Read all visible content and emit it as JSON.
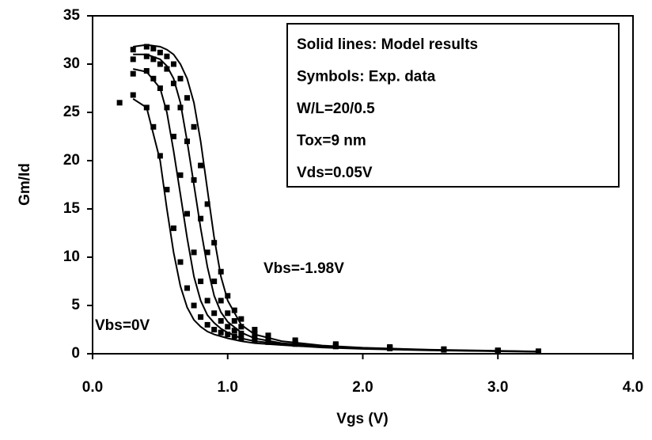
{
  "chart_data": {
    "type": "line",
    "xlabel": "Vgs (V)",
    "ylabel": "Gm/Id",
    "xlim": [
      0,
      4
    ],
    "ylim": [
      0,
      35
    ],
    "xticks": [
      {
        "value": 0,
        "label": "0.0"
      },
      {
        "value": 1,
        "label": "1.0"
      },
      {
        "value": 2,
        "label": "2.0"
      },
      {
        "value": 3,
        "label": "3.0"
      },
      {
        "value": 4,
        "label": "4.0"
      }
    ],
    "yticks": [
      0,
      5,
      10,
      15,
      20,
      25,
      30,
      35
    ],
    "legend_box": [
      "Solid lines: Model results",
      "Symbols: Exp. data",
      "W/L=20/0.5",
      "Tox=9 nm",
      "Vds=0.05V"
    ],
    "annotations": [
      "Vbs=0V",
      "Vbs=-1.98V"
    ],
    "series": [
      {
        "style": "line",
        "color": "#000000",
        "x": [
          0.3,
          0.4,
          0.5,
          0.55,
          0.6,
          0.65,
          0.7,
          0.75,
          0.8,
          0.85,
          0.9,
          0.95,
          1.0,
          1.1,
          1.2,
          1.4,
          1.7,
          2.0,
          2.5,
          3.0,
          3.3
        ],
        "values": [
          26.4,
          25.5,
          20,
          15,
          10.5,
          7,
          4.8,
          3.5,
          2.8,
          2.3,
          2,
          1.8,
          1.6,
          1.3,
          1.1,
          0.9,
          0.65,
          0.5,
          0.35,
          0.25,
          0.2
        ]
      },
      {
        "style": "line",
        "color": "#000000",
        "x": [
          0.3,
          0.4,
          0.5,
          0.55,
          0.6,
          0.65,
          0.7,
          0.75,
          0.8,
          0.85,
          0.9,
          0.95,
          1.0,
          1.1,
          1.2,
          1.4,
          1.7,
          2.0,
          2.5,
          3.0,
          3.3
        ],
        "values": [
          29.5,
          29.2,
          27.5,
          25,
          21,
          16.5,
          12,
          8,
          5.5,
          4,
          3.2,
          2.6,
          2.2,
          1.6,
          1.3,
          1,
          0.7,
          0.55,
          0.38,
          0.27,
          0.22
        ]
      },
      {
        "style": "line",
        "color": "#000000",
        "x": [
          0.3,
          0.4,
          0.5,
          0.55,
          0.6,
          0.65,
          0.7,
          0.75,
          0.8,
          0.85,
          0.9,
          0.95,
          1.0,
          1.1,
          1.2,
          1.4,
          1.7,
          2.0,
          2.5,
          3.0,
          3.3
        ],
        "values": [
          31,
          31,
          30.5,
          29.8,
          28.5,
          26,
          22,
          17.5,
          13,
          9,
          6,
          4.3,
          3.3,
          2.2,
          1.6,
          1.1,
          0.75,
          0.58,
          0.4,
          0.28,
          0.23
        ]
      },
      {
        "style": "line",
        "color": "#000000",
        "x": [
          0.3,
          0.4,
          0.5,
          0.55,
          0.6,
          0.65,
          0.7,
          0.75,
          0.8,
          0.85,
          0.9,
          0.95,
          1.0,
          1.1,
          1.2,
          1.4,
          1.7,
          2.0,
          2.5,
          3.0,
          3.3
        ],
        "values": [
          31.8,
          32,
          31.8,
          31.5,
          31,
          30,
          28.5,
          26,
          22,
          17,
          12,
          8,
          5.5,
          3,
          2,
          1.3,
          0.85,
          0.62,
          0.42,
          0.3,
          0.24
        ]
      },
      {
        "style": "marker",
        "color": "#000000",
        "x": [
          0.2,
          0.3,
          0.4,
          0.45,
          0.5,
          0.55,
          0.6,
          0.65,
          0.7,
          0.75,
          0.8,
          0.85,
          0.9,
          0.95,
          1.0,
          1.05,
          1.1,
          1.2,
          1.3,
          1.5,
          1.8,
          2.2,
          2.6,
          3.0,
          3.3
        ],
        "values": [
          26,
          26.8,
          25.5,
          23.5,
          20.5,
          17,
          13,
          9.5,
          6.8,
          5,
          3.8,
          3,
          2.5,
          2.2,
          2,
          1.8,
          1.6,
          1.4,
          1.2,
          1,
          0.75,
          0.55,
          0.4,
          0.3,
          0.22
        ]
      },
      {
        "style": "marker",
        "color": "#000000",
        "x": [
          0.2,
          0.3,
          0.4,
          0.45,
          0.5,
          0.55,
          0.6,
          0.65,
          0.7,
          0.75,
          0.8,
          0.85,
          0.9,
          0.95,
          1.0,
          1.05,
          1.1,
          1.2,
          1.3,
          1.5,
          1.8,
          2.2,
          2.6,
          3.0,
          3.3
        ],
        "values": [
          null,
          29,
          29.3,
          28.5,
          27.5,
          25.5,
          22.5,
          18.5,
          14.5,
          10.5,
          7.5,
          5.5,
          4.2,
          3.4,
          2.8,
          2.4,
          2.1,
          1.7,
          1.4,
          1.1,
          0.8,
          0.6,
          0.42,
          0.32,
          0.24
        ]
      },
      {
        "style": "marker",
        "color": "#000000",
        "x": [
          0.2,
          0.3,
          0.4,
          0.45,
          0.5,
          0.55,
          0.6,
          0.65,
          0.7,
          0.75,
          0.8,
          0.85,
          0.9,
          0.95,
          1.0,
          1.05,
          1.1,
          1.2,
          1.3,
          1.5,
          1.8,
          2.2,
          2.6,
          3.0,
          3.3
        ],
        "values": [
          null,
          30.5,
          30.8,
          30.5,
          30,
          29.5,
          28,
          25.5,
          22,
          18,
          14,
          10.5,
          7.5,
          5.5,
          4.2,
          3.4,
          2.8,
          2.1,
          1.7,
          1.3,
          0.9,
          0.65,
          0.45,
          0.34,
          0.25
        ]
      },
      {
        "style": "marker",
        "color": "#000000",
        "x": [
          0.2,
          0.3,
          0.4,
          0.45,
          0.5,
          0.55,
          0.6,
          0.65,
          0.7,
          0.75,
          0.8,
          0.85,
          0.9,
          0.95,
          1.0,
          1.05,
          1.1,
          1.2,
          1.3,
          1.5,
          1.8,
          2.2,
          2.6,
          3.0,
          3.3
        ],
        "values": [
          null,
          31.5,
          31.8,
          31.6,
          31.2,
          30.8,
          30,
          28.5,
          26.5,
          23.5,
          19.5,
          15.5,
          11.5,
          8.5,
          6,
          4.5,
          3.6,
          2.5,
          1.9,
          1.4,
          1,
          0.7,
          0.48,
          0.35,
          0.26
        ]
      }
    ]
  }
}
